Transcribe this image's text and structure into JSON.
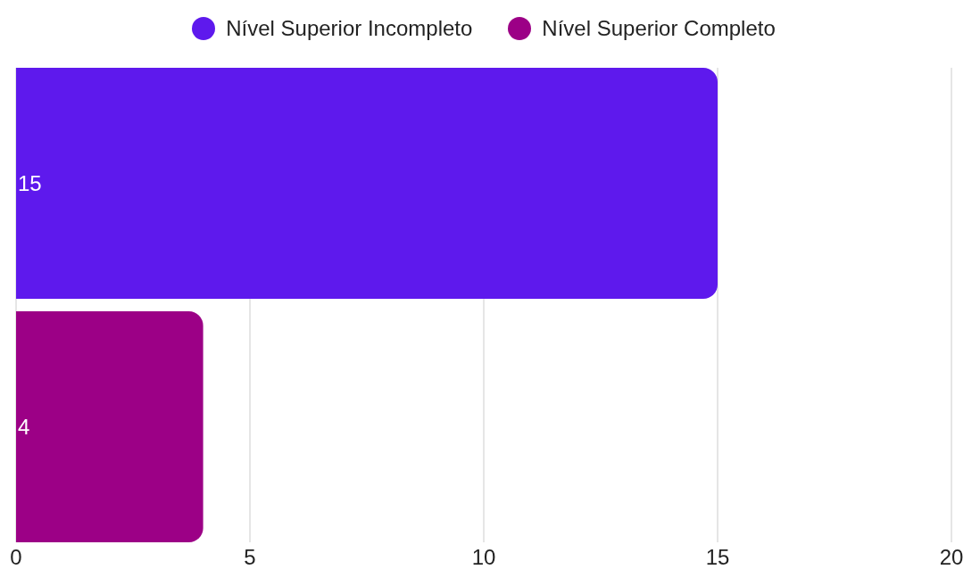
{
  "chart_data": {
    "type": "bar",
    "orientation": "horizontal",
    "categories": [
      null
    ],
    "series": [
      {
        "name": "Nível Superior Incompleto",
        "color": "#5e19ed",
        "values": [
          15
        ]
      },
      {
        "name": "Nível Superior Completo",
        "color": "#9c0086",
        "values": [
          4
        ]
      }
    ],
    "xlim": [
      0,
      20
    ],
    "xticks": [
      0,
      5,
      10,
      15,
      20
    ],
    "grid": "x",
    "legend": "top",
    "data_labels": true
  }
}
